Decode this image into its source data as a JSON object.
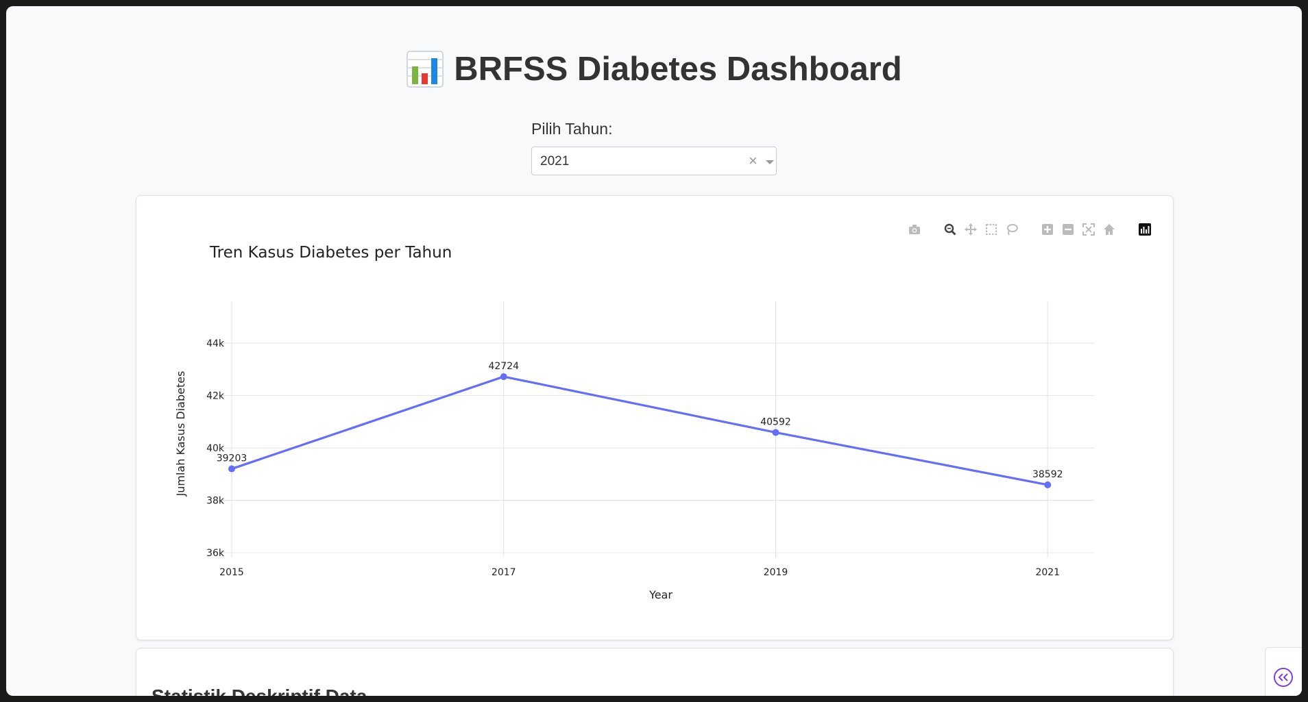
{
  "header": {
    "title": "BRFSS Diabetes Dashboard",
    "icon": "bar-chart-icon"
  },
  "filter": {
    "label": "Pilih Tahun:",
    "selected": "2021",
    "clear_symbol": "×"
  },
  "chart_data": {
    "type": "line",
    "title": "Tren Kasus Diabetes per Tahun",
    "xlabel": "Year",
    "ylabel": "Jumlah Kasus Diabetes",
    "x": [
      2015,
      2017,
      2019,
      2021
    ],
    "series": [
      {
        "values": [
          39203,
          42724,
          40592,
          38592
        ],
        "color": "#636efa"
      }
    ],
    "data_labels": [
      "39203",
      "42724",
      "40592",
      "38592"
    ],
    "x_ticks": [
      "2015",
      "2017",
      "2019",
      "2021"
    ],
    "y_tick_values": [
      36000,
      38000,
      40000,
      42000,
      44000
    ],
    "y_ticks": [
      "36k",
      "38k",
      "40k",
      "42k",
      "44k"
    ],
    "ylim": [
      36000,
      45600
    ],
    "xlim": [
      2015,
      2021.16
    ],
    "grid": true
  },
  "modebar": [
    "camera-icon",
    "zoom-icon",
    "pan-icon",
    "box-select-icon",
    "lasso-icon",
    "zoom-in-icon",
    "zoom-out-icon",
    "autoscale-icon",
    "reset-axes-icon",
    "plotly-logo-icon"
  ],
  "stats": {
    "title": "Statistik Deskriptif Data"
  }
}
